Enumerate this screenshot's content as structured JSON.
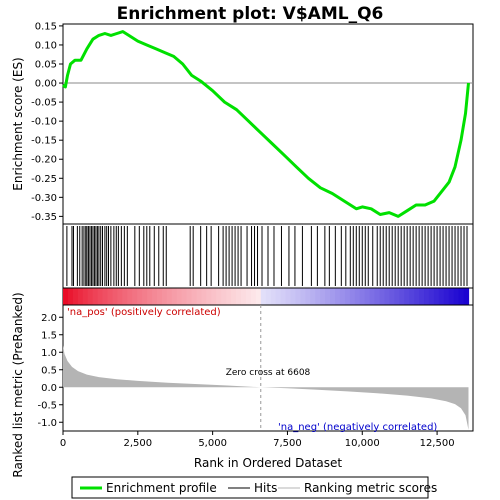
{
  "chart_data": {
    "type": "line",
    "title": "Enrichment plot: V$AML_Q6",
    "xlabel": "Rank in Ordered Dataset",
    "ylabel_top": "Enrichment score (ES)",
    "ylabel_bottom": "Ranked list metric (PreRanked)",
    "xlim": [
      0,
      13700
    ],
    "es_ylim": [
      -0.37,
      0.155
    ],
    "metric_ylim": [
      -1.25,
      2.35
    ],
    "x_ticks": [
      0,
      2500,
      5000,
      7500,
      10000,
      12500
    ],
    "x_tick_labels": [
      "0",
      "2,500",
      "5,000",
      "7,500",
      "10,000",
      "12,500"
    ],
    "es_ticks": [
      0.15,
      0.1,
      0.05,
      0.0,
      -0.05,
      -0.1,
      -0.15,
      -0.2,
      -0.25,
      -0.3,
      -0.35
    ],
    "es_tick_labels": [
      "0.15",
      "0.10",
      "0.05",
      "0.00",
      "-0.05",
      "-0.10",
      "-0.15",
      "-0.20",
      "-0.25",
      "-0.30",
      "-0.35"
    ],
    "metric_ticks": [
      2.0,
      1.5,
      1.0,
      0.5,
      0.0,
      -0.5,
      -1.0
    ],
    "metric_tick_labels": [
      "2.0",
      "1.5",
      "1.0",
      "0.5",
      "0.0",
      "-0.5",
      "-1.0"
    ],
    "grid": false,
    "legend_position": "bottom",
    "series": [
      {
        "name": "Enrichment profile",
        "color": "#00e000",
        "x": [
          0,
          80,
          150,
          250,
          400,
          600,
          800,
          1000,
          1200,
          1400,
          1600,
          1800,
          2000,
          2200,
          2500,
          2800,
          3100,
          3400,
          3700,
          4000,
          4300,
          4600,
          5000,
          5400,
          5800,
          6200,
          6600,
          7000,
          7400,
          7800,
          8200,
          8600,
          9000,
          9400,
          9800,
          10000,
          10300,
          10600,
          10900,
          11200,
          11500,
          11800,
          12100,
          12400,
          12700,
          12900,
          13100,
          13300,
          13450,
          13550
        ],
        "y": [
          -0.005,
          -0.01,
          0.02,
          0.05,
          0.06,
          0.06,
          0.09,
          0.115,
          0.125,
          0.13,
          0.125,
          0.13,
          0.135,
          0.125,
          0.11,
          0.1,
          0.09,
          0.08,
          0.07,
          0.05,
          0.02,
          0.005,
          -0.02,
          -0.05,
          -0.07,
          -0.1,
          -0.13,
          -0.16,
          -0.19,
          -0.22,
          -0.25,
          -0.275,
          -0.29,
          -0.31,
          -0.33,
          -0.325,
          -0.33,
          -0.345,
          -0.34,
          -0.35,
          -0.335,
          -0.32,
          -0.32,
          -0.31,
          -0.28,
          -0.26,
          -0.22,
          -0.15,
          -0.08,
          0.0
        ]
      },
      {
        "name": "Hits",
        "color": "#000000",
        "x": [
          130,
          300,
          350,
          480,
          560,
          640,
          700,
          760,
          800,
          850,
          900,
          950,
          1000,
          1050,
          1100,
          1150,
          1200,
          1260,
          1320,
          1400,
          1460,
          1520,
          1600,
          1700,
          1780,
          1850,
          1950,
          2050,
          2150,
          2400,
          2550,
          2700,
          2800,
          2900,
          3050,
          3200,
          3350,
          3450,
          4250,
          4350,
          4600,
          4800,
          4950,
          5200,
          5350,
          5450,
          5550,
          5650,
          5750,
          5850,
          5950,
          6150,
          6300,
          6400,
          6500,
          6650,
          6850,
          7050,
          7300,
          7550,
          7750,
          8000,
          8300,
          8500,
          8750,
          8900,
          9100,
          9300,
          9450,
          9600,
          9700,
          9800,
          9900,
          10000,
          10100,
          10200,
          10350,
          10500,
          10600,
          10700,
          10800,
          10900,
          11000,
          11100,
          11200,
          11300,
          11400,
          11500,
          11600,
          11700,
          11800,
          11900,
          12000,
          12100,
          12200,
          12300,
          12400,
          12500,
          12600,
          12700,
          12800,
          12900,
          13000,
          13100,
          13200,
          13300,
          13400,
          13500
        ]
      },
      {
        "name": "Ranking metric scores",
        "color": "#b4b4b4",
        "x": [
          0,
          50,
          150,
          300,
          500,
          800,
          1200,
          1800,
          2500,
          3500,
          4500,
          5500,
          6608,
          7500,
          8500,
          9500,
          10500,
          11500,
          12300,
          12800,
          13100,
          13300,
          13450,
          13550
        ],
        "y": [
          1.2,
          0.95,
          0.75,
          0.58,
          0.46,
          0.36,
          0.29,
          0.23,
          0.18,
          0.13,
          0.09,
          0.05,
          0.0,
          -0.03,
          -0.07,
          -0.12,
          -0.17,
          -0.24,
          -0.32,
          -0.4,
          -0.48,
          -0.6,
          -0.8,
          -1.22
        ]
      }
    ],
    "annotations": {
      "zero_cross": "Zero cross at 6608",
      "zero_cross_x": 6608,
      "pos_label": "'na_pos' (positively correlated)",
      "neg_label": "'na_neg' (negatively correlated)"
    },
    "colors": {
      "es_line": "#00e000",
      "hits": "#000000",
      "metric_fill": "#b4b4b4",
      "pos_label": "#cc0000",
      "neg_label": "#0000cc",
      "heat_red": "#e8001c",
      "heat_blue": "#1800d0"
    }
  }
}
